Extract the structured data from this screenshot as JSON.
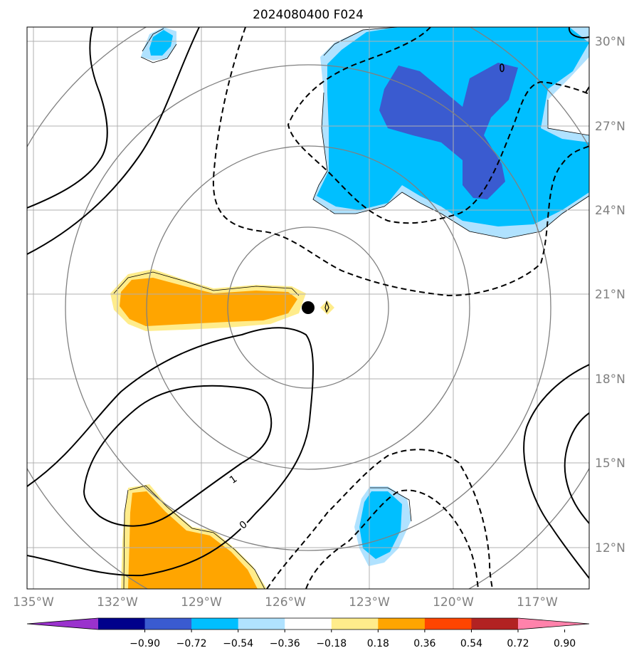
{
  "chart_data": {
    "type": "contour-map",
    "title": "2024080400 F024",
    "lon_ticks": [
      {
        "value": -135,
        "label": "135°W"
      },
      {
        "value": -132,
        "label": "132°W"
      },
      {
        "value": -129,
        "label": "129°W"
      },
      {
        "value": -126,
        "label": "126°W"
      },
      {
        "value": -123,
        "label": "123°W"
      },
      {
        "value": -120,
        "label": "120°W"
      },
      {
        "value": -117,
        "label": "117°W"
      }
    ],
    "lat_ticks": [
      {
        "value": 30,
        "label": "30°N"
      },
      {
        "value": 27,
        "label": "27°N"
      },
      {
        "value": 24,
        "label": "24°N"
      },
      {
        "value": 21,
        "label": "21°N"
      },
      {
        "value": 18,
        "label": "18°N"
      },
      {
        "value": 15,
        "label": "15°N"
      },
      {
        "value": 12,
        "label": "12°N"
      }
    ],
    "lon_range": [
      -135.2,
      -115.1
    ],
    "lat_range": [
      10.9,
      30.5
    ],
    "grid": true,
    "center": {
      "lon": -125.0,
      "lat": 20.6
    },
    "range_rings_deg": [
      2.85,
      5.7,
      8.55,
      11.4
    ],
    "contour_labels": [
      {
        "text": "1",
        "lon": -127.6,
        "lat": 14.5
      },
      {
        "text": "0",
        "lon": -127.3,
        "lat": 12.8
      },
      {
        "text": "0",
        "lon": -118.0,
        "lat": 29.5
      }
    ],
    "colorbar": {
      "levels": [
        "−0.90",
        "−0.72",
        "−0.54",
        "−0.36",
        "−0.18",
        "0.18",
        "0.36",
        "0.54",
        "0.72",
        "0.90"
      ],
      "colors": [
        "#9a32cd",
        "#00008b",
        "#3a5bd0",
        "#00bfff",
        "#b0e2ff",
        "#ffffff",
        "#ffec8b",
        "#ffa500",
        "#ff4500",
        "#b22222",
        "#ff82ab"
      ]
    }
  }
}
